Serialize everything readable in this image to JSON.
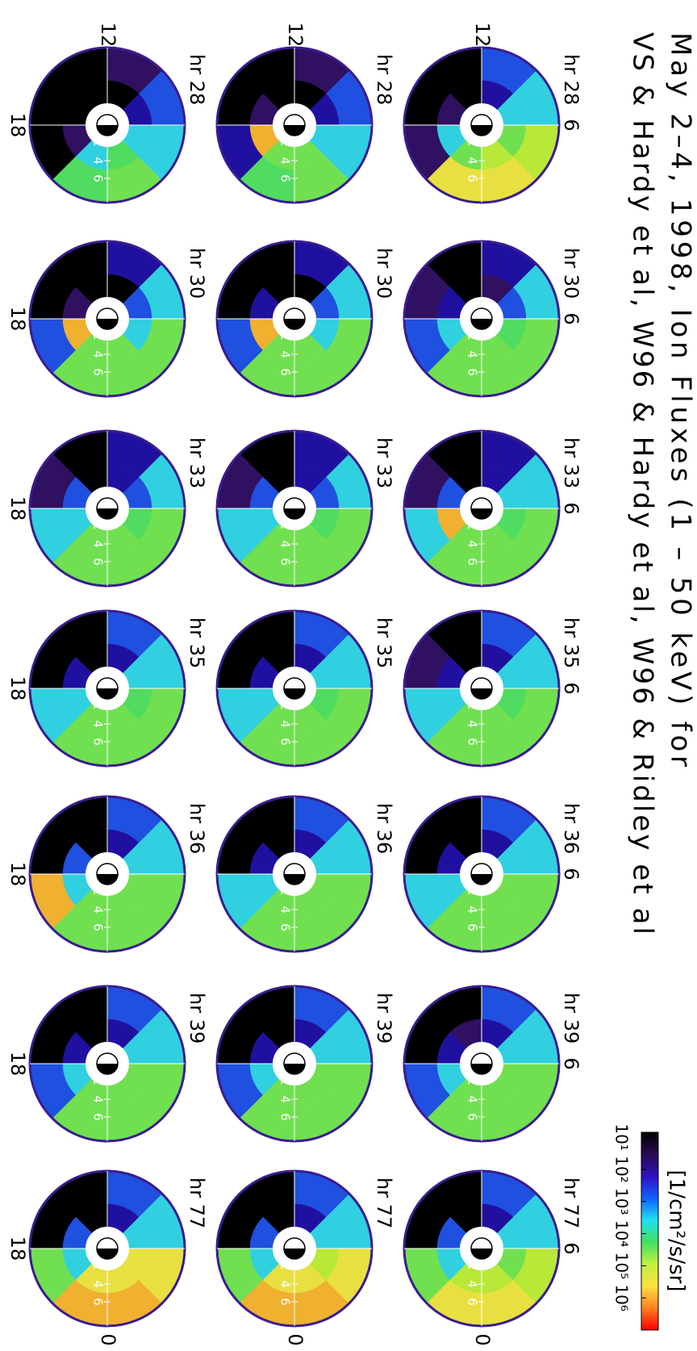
{
  "chart_data": {
    "type": "polar_heatmap",
    "title": [
      "May 2–4, 1998, Ion Fluxes (1 – 50 keV) for",
      "VS & Hardy et al, W96 & Hardy et al, W96 & Ridley et al"
    ],
    "mlt_labels": {
      "noon": "12",
      "dawn": "6",
      "dusk": "18",
      "midnight": "0"
    },
    "rticks": [
      2,
      4,
      6
    ],
    "colorbar": {
      "label": "[1/cm²/s/sr]",
      "log": true,
      "lim": [
        7,
        10000000
      ],
      "ticks": [
        {
          "value": 10,
          "label": "10¹"
        },
        {
          "value": 100,
          "label": "10²"
        },
        {
          "value": 1000,
          "label": "10³"
        },
        {
          "value": 10000,
          "label": "10⁴"
        },
        {
          "value": 100000,
          "label": "10⁵"
        },
        {
          "value": 1000000,
          "label": "10⁶"
        }
      ],
      "colormap": [
        "#000000",
        "#2a0a50",
        "#3010c0",
        "#1060ff",
        "#20e0f0",
        "#40e060",
        "#c0f040",
        "#ffe040",
        "#ff8020",
        "#ff0000"
      ]
    },
    "rows": [
      [
        {
          "label": "hr 28",
          "outer": [
            "#e8e040",
            "#b8e838",
            "#30d0e0",
            "#2050e0",
            "#000000",
            "#000000",
            "#301060",
            "#e8e040"
          ],
          "inner": [
            "#b8e838",
            "#70e050",
            "#30d0e0",
            "#2010a0",
            "#000000",
            "#301060",
            "#30d0e0",
            "#70e050"
          ]
        },
        {
          "label": "hr 30",
          "outer": [
            "#70e050",
            "#70e050",
            "#30d0e0",
            "#2010a0",
            "#000000",
            "#301060",
            "#2050e0",
            "#70e050"
          ],
          "inner": [
            "#70e050",
            "#50dc60",
            "#2050e0",
            "#301060",
            "#000000",
            "#2010a0",
            "#30d0e0",
            "#70e050"
          ]
        },
        {
          "label": "hr 33",
          "outer": [
            "#70e050",
            "#70e050",
            "#30d0e0",
            "#2010a0",
            "#000000",
            "#301060",
            "#30d0e0",
            "#70e050"
          ],
          "inner": [
            "#70e050",
            "#50dc60",
            "#30d0e0",
            "#2010a0",
            "#000000",
            "#2050e0",
            "#f0b030",
            "#70e050"
          ]
        },
        {
          "label": "hr 35",
          "outer": [
            "#70e050",
            "#70e050",
            "#30d0e0",
            "#2050e0",
            "#000000",
            "#301060",
            "#30d0e0",
            "#70e050"
          ],
          "inner": [
            "#70e050",
            "#50dc60",
            "#30d0e0",
            "#2010a0",
            "#000000",
            "#2010a0",
            "#30d0e0",
            "#70e050"
          ]
        },
        {
          "label": "hr 36",
          "outer": [
            "#70e050",
            "#70e050",
            "#30d0e0",
            "#2050e0",
            "#000000",
            "#000000",
            "#30d0e0",
            "#70e050"
          ],
          "inner": [
            "#70e050",
            "#70e050",
            "#30d0e0",
            "#2010a0",
            "#000000",
            "#2010a0",
            "#30d0e0",
            "#70e050"
          ]
        },
        {
          "label": "hr 39",
          "outer": [
            "#70e050",
            "#70e050",
            "#30d0e0",
            "#2050e0",
            "#000000",
            "#000000",
            "#2050e0",
            "#70e050"
          ],
          "inner": [
            "#70e050",
            "#70e050",
            "#30d0e0",
            "#2010a0",
            "#301060",
            "#2010a0",
            "#30d0e0",
            "#70e050"
          ]
        },
        {
          "label": "hr 77",
          "outer": [
            "#e8e040",
            "#b8e838",
            "#30d0e0",
            "#2050e0",
            "#000000",
            "#000000",
            "#70e050",
            "#e8e040"
          ],
          "inner": [
            "#b8e838",
            "#70e050",
            "#30d0e0",
            "#2010a0",
            "#000000",
            "#2050e0",
            "#30d0e0",
            "#b8e838"
          ]
        }
      ],
      [
        {
          "label": "hr 28",
          "outer": [
            "#70e050",
            "#30d0e0",
            "#2050e0",
            "#301060",
            "#000000",
            "#000000",
            "#2010a0",
            "#50dc60"
          ],
          "inner": [
            "#70e050",
            "#30d0e0",
            "#2010a0",
            "#000000",
            "#000000",
            "#301060",
            "#f0b030",
            "#70e050"
          ]
        },
        {
          "label": "hr 30",
          "outer": [
            "#70e050",
            "#70e050",
            "#30d0e0",
            "#2010a0",
            "#000000",
            "#000000",
            "#2050e0",
            "#70e050"
          ],
          "inner": [
            "#70e050",
            "#30d0e0",
            "#2050e0",
            "#000000",
            "#000000",
            "#2010a0",
            "#f0b030",
            "#70e050"
          ]
        },
        {
          "label": "hr 33",
          "outer": [
            "#70e050",
            "#70e050",
            "#30d0e0",
            "#2010a0",
            "#000000",
            "#301060",
            "#30d0e0",
            "#70e050"
          ],
          "inner": [
            "#70e050",
            "#50dc60",
            "#2050e0",
            "#2010a0",
            "#000000",
            "#2050e0",
            "#30d0e0",
            "#70e050"
          ]
        },
        {
          "label": "hr 35",
          "outer": [
            "#70e050",
            "#70e050",
            "#30d0e0",
            "#2050e0",
            "#000000",
            "#000000",
            "#30d0e0",
            "#70e050"
          ],
          "inner": [
            "#70e050",
            "#50dc60",
            "#30d0e0",
            "#2010a0",
            "#000000",
            "#2010a0",
            "#30d0e0",
            "#70e050"
          ]
        },
        {
          "label": "hr 36",
          "outer": [
            "#70e050",
            "#70e050",
            "#30d0e0",
            "#2050e0",
            "#000000",
            "#000000",
            "#30d0e0",
            "#70e050"
          ],
          "inner": [
            "#70e050",
            "#70e050",
            "#30d0e0",
            "#2010a0",
            "#000000",
            "#2010a0",
            "#30d0e0",
            "#70e050"
          ]
        },
        {
          "label": "hr 39",
          "outer": [
            "#70e050",
            "#70e050",
            "#30d0e0",
            "#2050e0",
            "#000000",
            "#000000",
            "#2050e0",
            "#70e050"
          ],
          "inner": [
            "#70e050",
            "#70e050",
            "#30d0e0",
            "#2010a0",
            "#000000",
            "#2010a0",
            "#30d0e0",
            "#70e050"
          ]
        },
        {
          "label": "hr 77",
          "outer": [
            "#f0b030",
            "#e8e040",
            "#30d0e0",
            "#2050e0",
            "#000000",
            "#000000",
            "#70e050",
            "#f0b030"
          ],
          "inner": [
            "#e8e040",
            "#b8e838",
            "#30d0e0",
            "#2010a0",
            "#000000",
            "#2050e0",
            "#30d0e0",
            "#e8e040"
          ]
        }
      ],
      [
        {
          "label": "hr 28",
          "outer": [
            "#70e050",
            "#30d0e0",
            "#2050e0",
            "#301060",
            "#000000",
            "#000000",
            "#000000",
            "#50dc60"
          ],
          "inner": [
            "#50dc60",
            "#30d0e0",
            "#2010a0",
            "#000000",
            "#000000",
            "#000000",
            "#301060",
            "#30d0e0"
          ]
        },
        {
          "label": "hr 30",
          "outer": [
            "#70e050",
            "#70e050",
            "#30d0e0",
            "#2010a0",
            "#000000",
            "#000000",
            "#2050e0",
            "#70e050"
          ],
          "inner": [
            "#70e050",
            "#30d0e0",
            "#2050e0",
            "#000000",
            "#000000",
            "#301060",
            "#f0b030",
            "#70e050"
          ]
        },
        {
          "label": "hr 33",
          "outer": [
            "#70e050",
            "#70e050",
            "#30d0e0",
            "#2010a0",
            "#000000",
            "#301060",
            "#30d0e0",
            "#70e050"
          ],
          "inner": [
            "#70e050",
            "#50dc60",
            "#2050e0",
            "#2010a0",
            "#000000",
            "#2050e0",
            "#30d0e0",
            "#70e050"
          ]
        },
        {
          "label": "hr 35",
          "outer": [
            "#70e050",
            "#70e050",
            "#30d0e0",
            "#2050e0",
            "#000000",
            "#000000",
            "#30d0e0",
            "#70e050"
          ],
          "inner": [
            "#70e050",
            "#50dc60",
            "#30d0e0",
            "#2010a0",
            "#000000",
            "#2010a0",
            "#30d0e0",
            "#70e050"
          ]
        },
        {
          "label": "hr 36",
          "outer": [
            "#70e050",
            "#70e050",
            "#30d0e0",
            "#2050e0",
            "#000000",
            "#000000",
            "#f0b030",
            "#70e050"
          ],
          "inner": [
            "#70e050",
            "#70e050",
            "#30d0e0",
            "#2010a0",
            "#000000",
            "#2050e0",
            "#30d0e0",
            "#70e050"
          ]
        },
        {
          "label": "hr 39",
          "outer": [
            "#70e050",
            "#70e050",
            "#30d0e0",
            "#2050e0",
            "#000000",
            "#000000",
            "#2050e0",
            "#70e050"
          ],
          "inner": [
            "#70e050",
            "#70e050",
            "#30d0e0",
            "#2010a0",
            "#000000",
            "#2010a0",
            "#30d0e0",
            "#70e050"
          ]
        },
        {
          "label": "hr 77",
          "outer": [
            "#f0b030",
            "#e8e040",
            "#30d0e0",
            "#2050e0",
            "#000000",
            "#000000",
            "#70e050",
            "#f0b030"
          ],
          "inner": [
            "#e8e040",
            "#e8e040",
            "#30d0e0",
            "#2010a0",
            "#000000",
            "#2050e0",
            "#30d0e0",
            "#e8e040"
          ]
        }
      ]
    ]
  }
}
